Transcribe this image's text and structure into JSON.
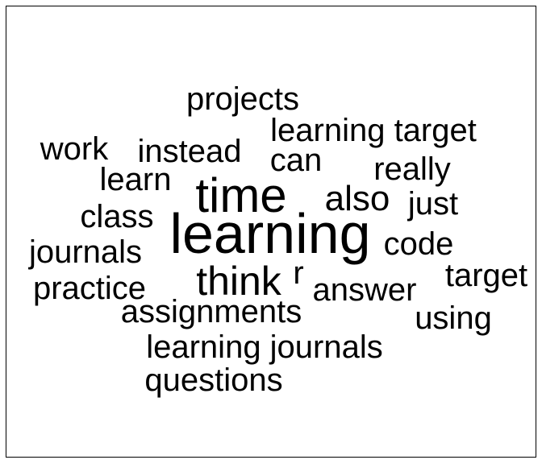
{
  "chart_data": {
    "type": "wordcloud",
    "title": "",
    "text_color": "#000000",
    "background_color": "#ffffff",
    "words": [
      {
        "text": "learning",
        "weight": 10
      },
      {
        "text": "time",
        "weight": 8
      },
      {
        "text": "think",
        "weight": 6
      },
      {
        "text": "also",
        "weight": 5.5
      },
      {
        "text": "r",
        "weight": 5
      },
      {
        "text": "projects",
        "weight": 4
      },
      {
        "text": "learning target",
        "weight": 4
      },
      {
        "text": "work",
        "weight": 4
      },
      {
        "text": "instead",
        "weight": 4
      },
      {
        "text": "can",
        "weight": 4
      },
      {
        "text": "really",
        "weight": 4
      },
      {
        "text": "learn",
        "weight": 4
      },
      {
        "text": "just",
        "weight": 4
      },
      {
        "text": "class",
        "weight": 4
      },
      {
        "text": "code",
        "weight": 4
      },
      {
        "text": "journals",
        "weight": 4
      },
      {
        "text": "target",
        "weight": 4
      },
      {
        "text": "practice",
        "weight": 4
      },
      {
        "text": "answer",
        "weight": 4
      },
      {
        "text": "assignments",
        "weight": 4
      },
      {
        "text": "using",
        "weight": 4
      },
      {
        "text": "learning journals",
        "weight": 4
      },
      {
        "text": "questions",
        "weight": 4
      }
    ]
  }
}
